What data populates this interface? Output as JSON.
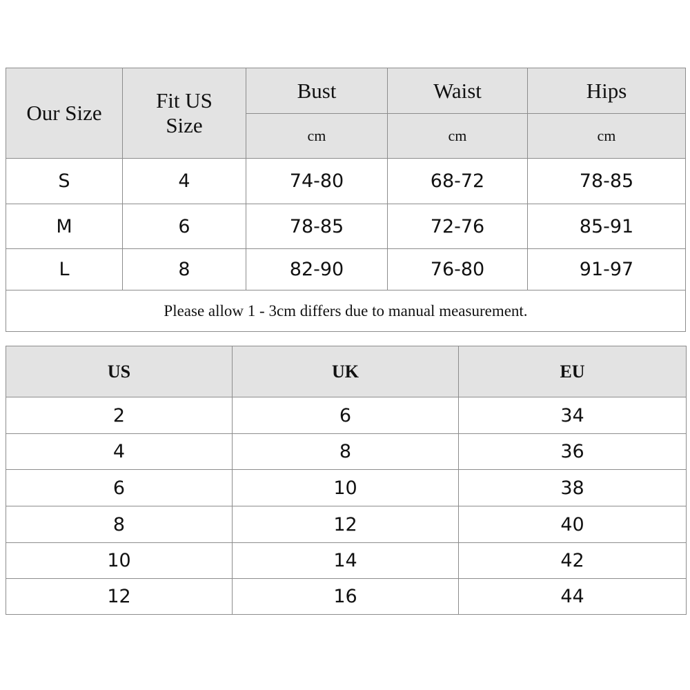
{
  "size_table": {
    "headers": {
      "our_size": "Our Size",
      "fit_us_size": "Fit US Size",
      "bust": "Bust",
      "waist": "Waist",
      "hips": "Hips",
      "unit": "cm"
    },
    "rows": [
      {
        "our_size": "S",
        "fit_us": "4",
        "bust": "74-80",
        "waist": "68-72",
        "hips": "78-85"
      },
      {
        "our_size": "M",
        "fit_us": "6",
        "bust": "78-85",
        "waist": "72-76",
        "hips": "85-91"
      },
      {
        "our_size": "L",
        "fit_us": "8",
        "bust": "82-90",
        "waist": "76-80",
        "hips": "91-97"
      }
    ],
    "note": "Please allow 1 - 3cm differs due to manual measurement."
  },
  "conversion_table": {
    "headers": [
      "US",
      "UK",
      "EU"
    ],
    "rows": [
      [
        "2",
        "6",
        "34"
      ],
      [
        "4",
        "8",
        "36"
      ],
      [
        "6",
        "10",
        "38"
      ],
      [
        "8",
        "12",
        "40"
      ],
      [
        "10",
        "14",
        "42"
      ],
      [
        "12",
        "16",
        "44"
      ]
    ]
  }
}
